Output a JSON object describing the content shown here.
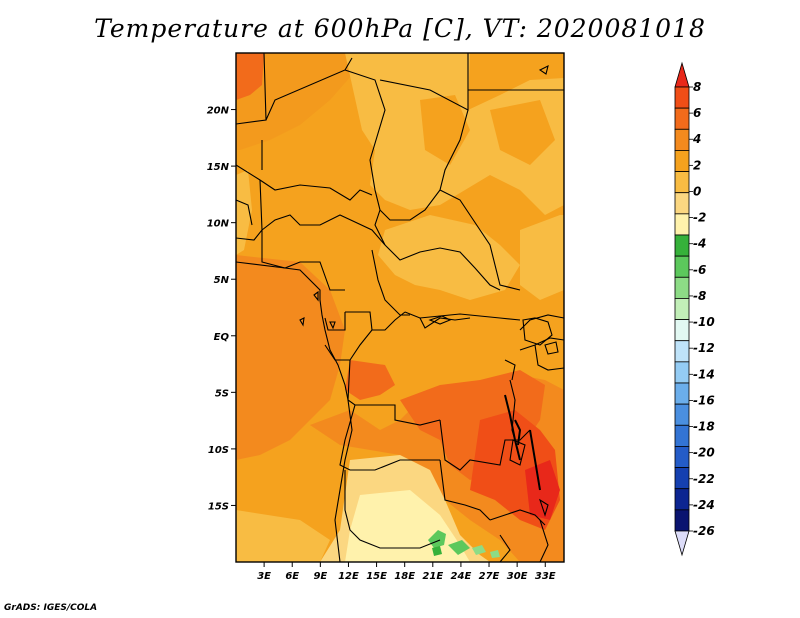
{
  "title": "Temperature at 600hPa [C], VT: 2020081018",
  "credit": "GrADS: IGES/COLA",
  "map": {
    "lat_range": [
      -20,
      25
    ],
    "lon_range": [
      0,
      35
    ],
    "lat_ticks": [
      {
        "value": 20,
        "label": "20N"
      },
      {
        "value": 15,
        "label": "15N"
      },
      {
        "value": 10,
        "label": "10N"
      },
      {
        "value": 5,
        "label": "5N"
      },
      {
        "value": 0,
        "label": "EQ"
      },
      {
        "value": -5,
        "label": "5S"
      },
      {
        "value": -10,
        "label": "10S"
      },
      {
        "value": -15,
        "label": "15S"
      }
    ],
    "lon_ticks": [
      {
        "value": 3,
        "label": "3E"
      },
      {
        "value": 6,
        "label": "6E"
      },
      {
        "value": 9,
        "label": "9E"
      },
      {
        "value": 12,
        "label": "12E"
      },
      {
        "value": 15,
        "label": "15E"
      },
      {
        "value": 18,
        "label": "18E"
      },
      {
        "value": 21,
        "label": "21E"
      },
      {
        "value": 24,
        "label": "24E"
      },
      {
        "value": 27,
        "label": "27E"
      },
      {
        "value": 30,
        "label": "30E"
      },
      {
        "value": 33,
        "label": "33E"
      }
    ]
  },
  "colorbar": {
    "labels": [
      "8",
      "6",
      "4",
      "2",
      "0",
      "-2",
      "-4",
      "-6",
      "-8",
      "-10",
      "-12",
      "-14",
      "-16",
      "-18",
      "-20",
      "-22",
      "-24",
      "-26"
    ],
    "colors": [
      "#e8281a",
      "#f04e17",
      "#f26b1b",
      "#f38a1e",
      "#f5a21e",
      "#f8bc43",
      "#fbd781",
      "#fff2ac",
      "#36b13a",
      "#5cc85c",
      "#8ddc86",
      "#c2efb8",
      "#e2f8f2",
      "#bfe3f9",
      "#94ccf4",
      "#6baeeb",
      "#4a8fe0",
      "#3374d4",
      "#245cc8",
      "#1540b0",
      "#0c2591",
      "#0a1470",
      "#dcdcf8"
    ]
  }
}
